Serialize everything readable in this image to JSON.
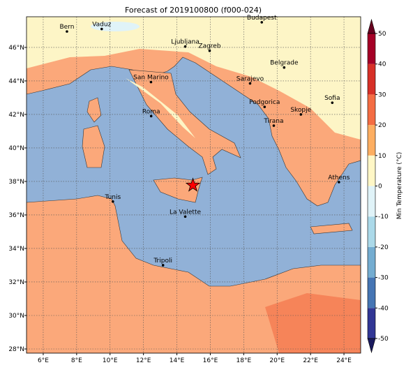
{
  "title": "Forecast of 2019100800 (f000-024)",
  "map": {
    "lonlim": [
      5,
      25
    ],
    "latlim": [
      27.75,
      47.83
    ],
    "lonticks": [
      {
        "value": 6,
        "label": "6°E"
      },
      {
        "value": 8,
        "label": "8°E"
      },
      {
        "value": 10,
        "label": "10°E"
      },
      {
        "value": 12,
        "label": "12°E"
      },
      {
        "value": 14,
        "label": "14°E"
      },
      {
        "value": 16,
        "label": "16°E"
      },
      {
        "value": 18,
        "label": "18°E"
      },
      {
        "value": 20,
        "label": "20°E"
      },
      {
        "value": 22,
        "label": "22°E"
      },
      {
        "value": 24,
        "label": "24°E"
      }
    ],
    "latticks": [
      {
        "value": 28,
        "label": "28°N"
      },
      {
        "value": 30,
        "label": "30°N"
      },
      {
        "value": 32,
        "label": "32°N"
      },
      {
        "value": 34,
        "label": "34°N"
      },
      {
        "value": 36,
        "label": "36°N"
      },
      {
        "value": 38,
        "label": "38°N"
      },
      {
        "value": 40,
        "label": "40°N"
      },
      {
        "value": 42,
        "label": "42°N"
      },
      {
        "value": 44,
        "label": "44°N"
      },
      {
        "value": 46,
        "label": "46°N"
      }
    ],
    "grid": true,
    "cities": [
      {
        "name": "Bern",
        "lon": 7.42,
        "lat": 46.95
      },
      {
        "name": "Vaduz",
        "lon": 9.5,
        "lat": 47.1
      },
      {
        "name": "Budapest",
        "lon": 19.08,
        "lat": 47.5
      },
      {
        "name": "Ljubljana",
        "lon": 14.5,
        "lat": 46.05
      },
      {
        "name": "Zagreb",
        "lon": 15.96,
        "lat": 45.8
      },
      {
        "name": "San Marino",
        "lon": 12.45,
        "lat": 43.93
      },
      {
        "name": "Belgrade",
        "lon": 20.42,
        "lat": 44.8
      },
      {
        "name": "Sarajevo",
        "lon": 18.38,
        "lat": 43.85
      },
      {
        "name": "Sofia",
        "lon": 23.3,
        "lat": 42.7
      },
      {
        "name": "Podgorica",
        "lon": 19.25,
        "lat": 42.45
      },
      {
        "name": "Skopje",
        "lon": 21.42,
        "lat": 42.0
      },
      {
        "name": "Roma",
        "lon": 12.46,
        "lat": 41.9
      },
      {
        "name": "Tirana",
        "lon": 19.8,
        "lat": 41.33
      },
      {
        "name": "Athens",
        "lon": 23.7,
        "lat": 37.96
      },
      {
        "name": "Tunis",
        "lon": 10.17,
        "lat": 36.8
      },
      {
        "name": "La Valette",
        "lon": 14.5,
        "lat": 35.9
      },
      {
        "name": "Tripoli",
        "lon": 13.17,
        "lat": 33.0
      }
    ],
    "marker": {
      "lon": 14.96,
      "lat": 37.77,
      "color": "#ff0000"
    }
  },
  "colorbar": {
    "label": "Min Temperature (°C)",
    "lim": [
      -50,
      50
    ],
    "ticks": [
      -50,
      -40,
      -30,
      -20,
      -10,
      0,
      10,
      20,
      30,
      40,
      50
    ],
    "colors": [
      "#313695",
      "#4575b4",
      "#74add1",
      "#abd9e9",
      "#e0f3f8",
      "#fff7c6",
      "#fdae61",
      "#f46d43",
      "#d73027",
      "#a50026"
    ],
    "extend_colors": [
      "#1a1a5e",
      "#67001f"
    ]
  }
}
